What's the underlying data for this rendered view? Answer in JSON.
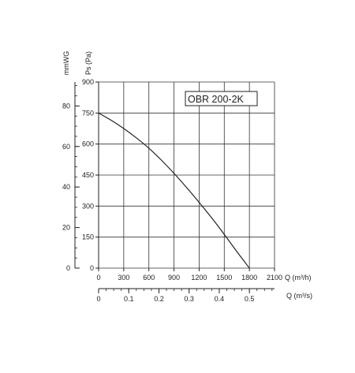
{
  "chart_data": {
    "type": "line",
    "model_label": "OBR 200-2K",
    "series": [
      {
        "x": [
          0,
          150,
          300,
          450,
          600,
          750,
          900,
          1050,
          1200,
          1350,
          1500,
          1650,
          1800
        ],
        "y": [
          750,
          715,
          675,
          630,
          580,
          522,
          458,
          390,
          318,
          243,
          163,
          80,
          0
        ]
      }
    ],
    "xlabel": "Q (m³/h)",
    "xlim": [
      0,
      2100
    ],
    "x_ticks": [
      "0",
      "300",
      "600",
      "900",
      "1200",
      "1500",
      "1800",
      "2100"
    ],
    "ylabel": "Ps (Pa)",
    "ylim": [
      0,
      900
    ],
    "y_ticks": [
      "0",
      "150",
      "300",
      "450",
      "600",
      "750",
      "900"
    ],
    "secondary_x": {
      "label": "Q (m³/s)",
      "ticks": [
        "0",
        "0.1",
        "0.2",
        "0.3",
        "0.4",
        "0.5"
      ],
      "tick_values": [
        0,
        0.1,
        0.2,
        0.3,
        0.4,
        0.5
      ],
      "range": [
        0,
        0.5833
      ]
    },
    "secondary_y": {
      "label": "mmWG",
      "ticks": [
        "0",
        "20",
        "40",
        "60",
        "80"
      ],
      "tick_values": [
        0,
        20,
        40,
        60,
        80
      ],
      "range": [
        0,
        91.8
      ]
    },
    "grid": true
  }
}
